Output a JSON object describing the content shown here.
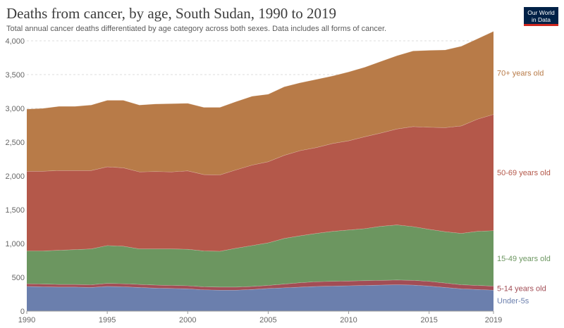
{
  "header": {
    "title": "Deaths from cancer, by age, South Sudan, 1990 to 2019",
    "subtitle": "Total annual cancer deaths differentiated by age category across both sexes. Data includes all forms of cancer.",
    "logo_line1": "Our World",
    "logo_line2": "in Data"
  },
  "colors": {
    "brand_navy": "#002147",
    "brand_red": "#ce261e"
  },
  "chart_data": {
    "type": "area",
    "stacked": true,
    "x": [
      1990,
      1991,
      1992,
      1993,
      1994,
      1995,
      1996,
      1997,
      1998,
      1999,
      2000,
      2001,
      2002,
      2003,
      2004,
      2005,
      2006,
      2007,
      2008,
      2009,
      2010,
      2011,
      2012,
      2013,
      2014,
      2015,
      2016,
      2017,
      2018,
      2019
    ],
    "xticks": [
      "1990",
      "1995",
      "2000",
      "2005",
      "2010",
      "2015",
      "2019"
    ],
    "yticks": [
      "0",
      "500",
      "1,000",
      "1,500",
      "2,000",
      "2,500",
      "3,000",
      "3,500",
      "4,000"
    ],
    "ylim": [
      0,
      4000
    ],
    "grid": "horizontal dashed",
    "legend": "right, inline labels",
    "series": [
      {
        "name": "Under-5s",
        "color": "#6b7fad",
        "values": [
          365,
          360,
          355,
          355,
          350,
          365,
          360,
          350,
          340,
          335,
          330,
          315,
          310,
          310,
          320,
          335,
          345,
          355,
          365,
          370,
          375,
          380,
          385,
          390,
          385,
          370,
          350,
          330,
          320,
          310
        ]
      },
      {
        "name": "5-14 years old",
        "color": "#a24d55",
        "values": [
          40,
          40,
          40,
          40,
          40,
          45,
          45,
          45,
          45,
          45,
          45,
          45,
          45,
          45,
          45,
          45,
          55,
          65,
          70,
          70,
          70,
          70,
          70,
          70,
          70,
          70,
          65,
          60,
          60,
          60
        ]
      },
      {
        "name": "15-49 years old",
        "color": "#6c9660",
        "values": [
          485,
          490,
          505,
          515,
          530,
          560,
          555,
          525,
          535,
          540,
          540,
          530,
          530,
          575,
          605,
          630,
          675,
          695,
          715,
          740,
          755,
          770,
          800,
          815,
          795,
          770,
          760,
          760,
          800,
          820
        ]
      },
      {
        "name": "50-69 years old",
        "color": "#b4584a",
        "values": [
          1180,
          1180,
          1180,
          1170,
          1160,
          1165,
          1160,
          1140,
          1145,
          1140,
          1160,
          1130,
          1130,
          1160,
          1190,
          1200,
          1230,
          1260,
          1270,
          1300,
          1320,
          1360,
          1380,
          1420,
          1480,
          1510,
          1540,
          1590,
          1660,
          1720
        ]
      },
      {
        "name": "70+ years old",
        "color": "#b87b48",
        "values": [
          920,
          930,
          950,
          950,
          970,
          985,
          1000,
          990,
          1000,
          1010,
          1000,
          995,
          1000,
          1010,
          1020,
          1000,
          1015,
          1005,
          1010,
          1000,
          1020,
          1030,
          1060,
          1085,
          1120,
          1140,
          1150,
          1180,
          1190,
          1230
        ]
      }
    ]
  }
}
